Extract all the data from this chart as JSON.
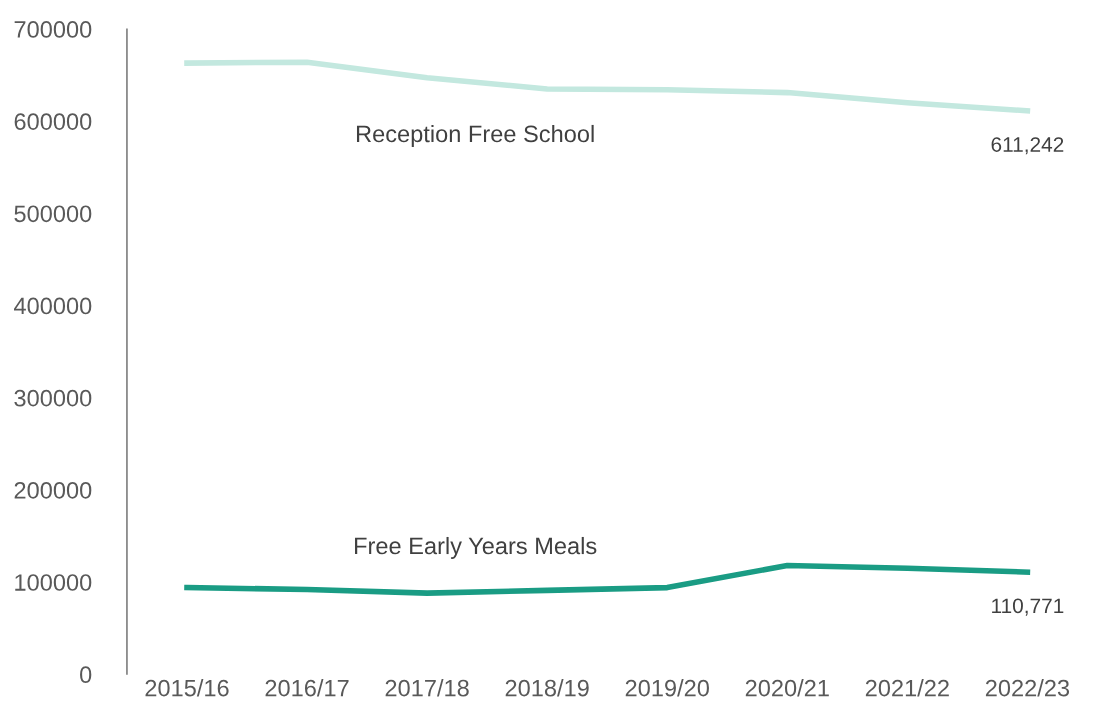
{
  "chart_data": {
    "type": "line",
    "categories": [
      "2015/16",
      "2016/17",
      "2017/18",
      "2018/19",
      "2019/20",
      "2020/21",
      "2021/22",
      "2022/23"
    ],
    "series": [
      {
        "name": "Reception Free School",
        "color": "#c3e8df",
        "values": [
          663000,
          664000,
          647000,
          635000,
          634000,
          631000,
          620000,
          611242
        ],
        "value_labels": [
          null,
          null,
          null,
          null,
          null,
          null,
          null,
          "611,242"
        ]
      },
      {
        "name": "Free Early Years Meals",
        "color": "#1a9c84",
        "values": [
          94000,
          92000,
          88000,
          91000,
          94000,
          118000,
          115000,
          110771
        ],
        "value_labels": [
          null,
          null,
          null,
          null,
          null,
          null,
          null,
          "110,771"
        ]
      }
    ],
    "ylim": [
      0,
      700000
    ],
    "yticks": [
      0,
      100000,
      200000,
      300000,
      400000,
      500000,
      600000,
      700000
    ],
    "grid": false,
    "marker": "none",
    "line_style": "solid"
  }
}
